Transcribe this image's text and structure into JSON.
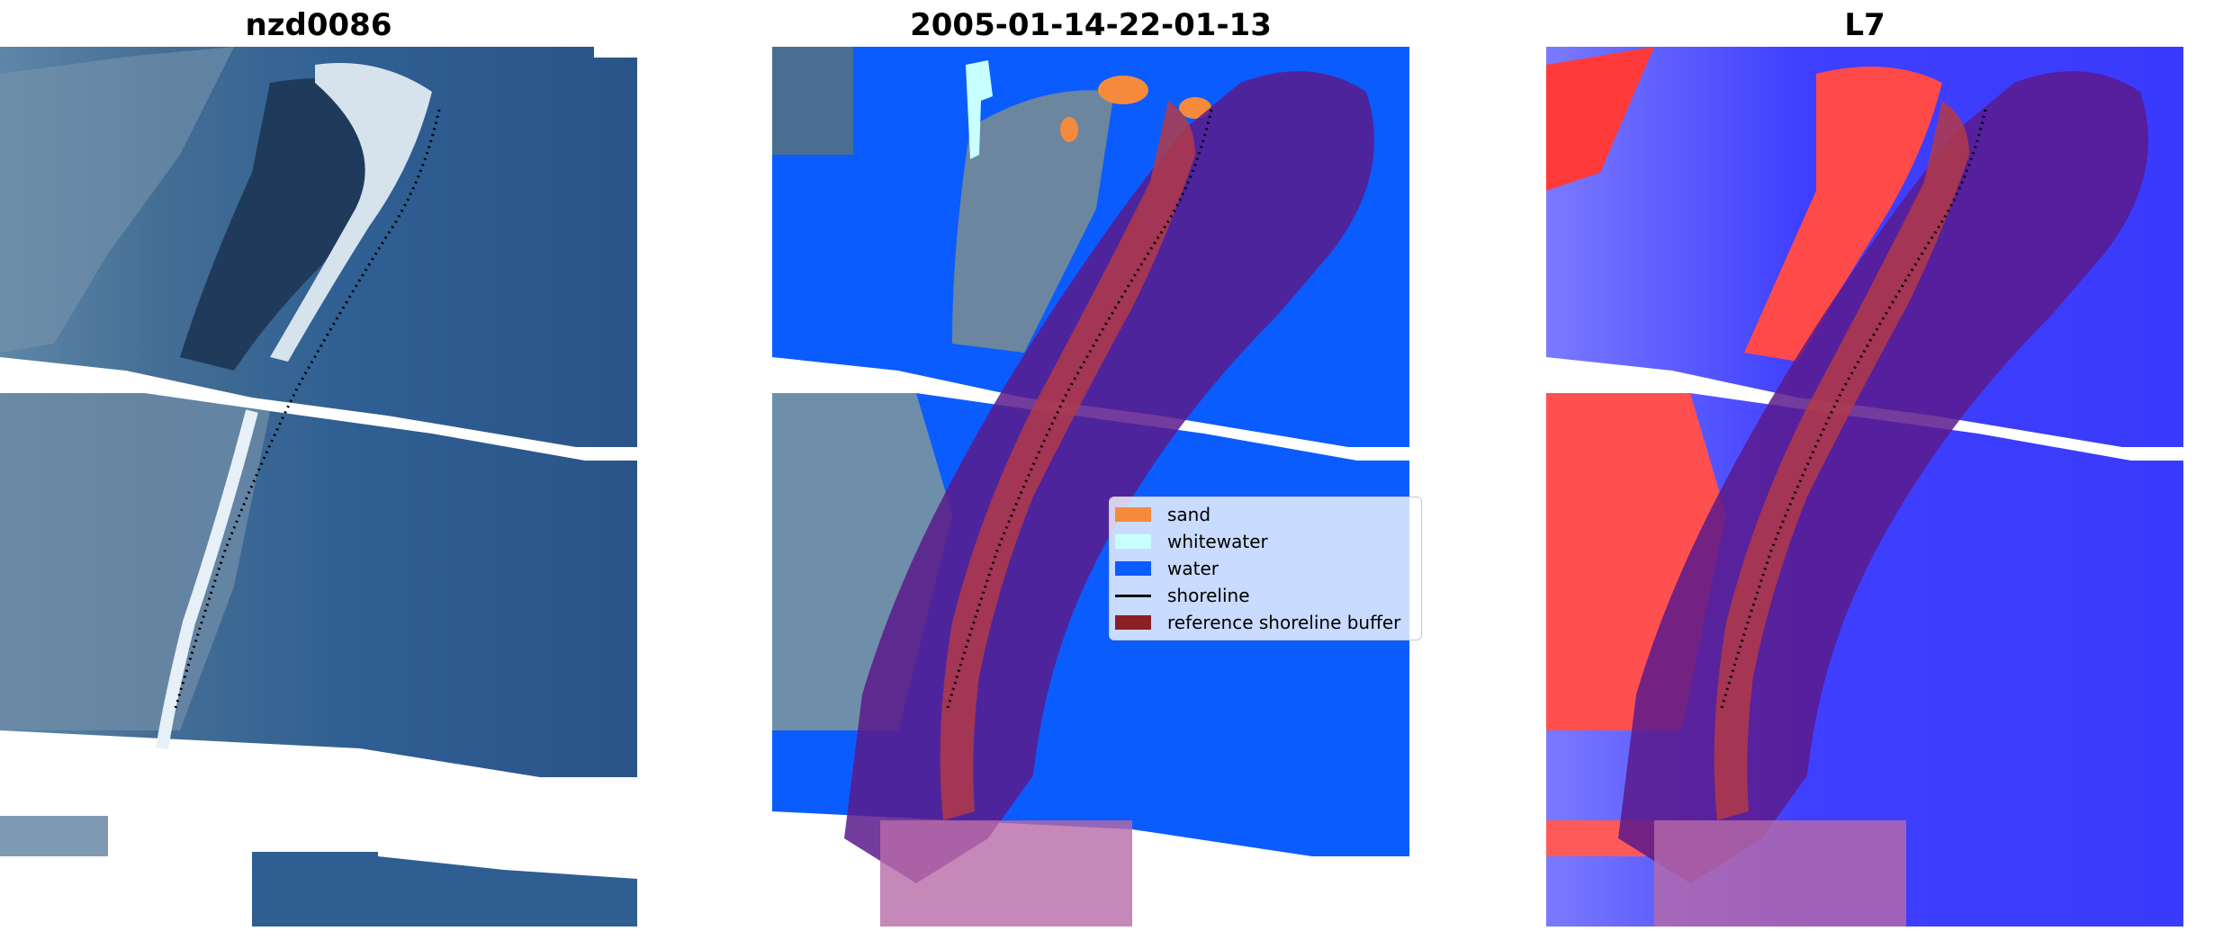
{
  "panels": [
    {
      "title": "nzd0086",
      "type": "rgb-satellite-image"
    },
    {
      "title": "2005-01-14-22-01-13",
      "type": "classified-image"
    },
    {
      "title": "L7",
      "type": "index-colormap-image"
    }
  ],
  "legend": {
    "items": [
      {
        "label": "sand",
        "color": "#f58a3d",
        "kind": "patch"
      },
      {
        "label": "whitewater",
        "color": "#c8ffff",
        "kind": "patch"
      },
      {
        "label": "water",
        "color": "#0a5cff",
        "kind": "patch"
      },
      {
        "label": "shoreline",
        "color": "#000000",
        "kind": "line"
      },
      {
        "label": "reference shoreline buffer",
        "color": "#8c1f24",
        "kind": "patch"
      }
    ]
  },
  "colors": {
    "water_rgb": "#2b5b8f",
    "land_rgb": "#6f8ea5",
    "beach_rgb": "#dfe9f1",
    "water_class": "#0a5cff",
    "sand_class": "#f58a3d",
    "buffer": "#8c1f24",
    "buffer_overlay": "#5a1a8c",
    "index_positive": "#ff2020",
    "index_negative": "#1a1aff",
    "nodata": "#ffffff"
  }
}
